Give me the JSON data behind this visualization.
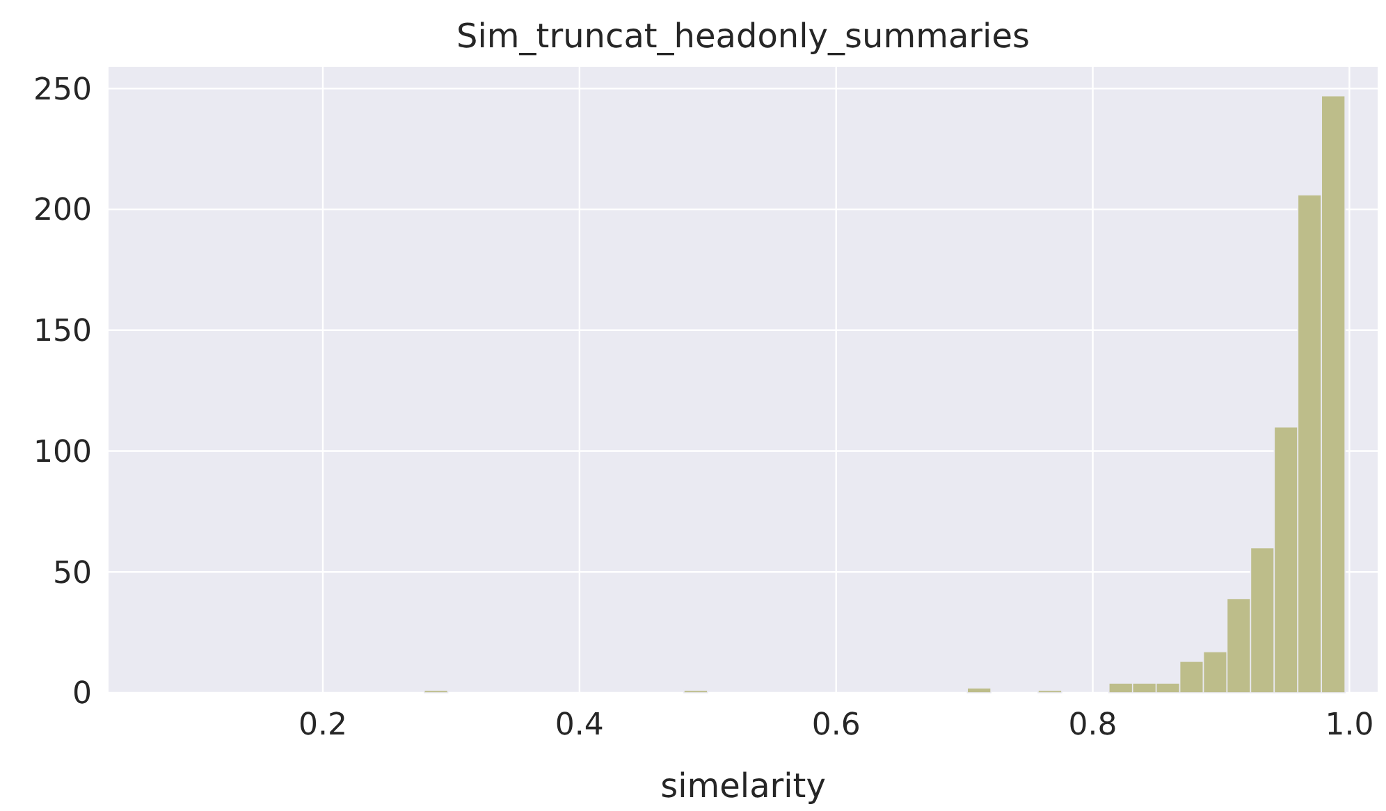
{
  "chart_data": {
    "type": "histogram",
    "title": "Sim_truncat_headonly_summaries",
    "xlabel": "simelarity",
    "bins": [
      0.0766,
      0.095,
      0.1134,
      0.1318,
      0.1502,
      0.1686,
      0.187,
      0.2054,
      0.2238,
      0.2422,
      0.2606,
      0.279,
      0.2974,
      0.3158,
      0.3342,
      0.3526,
      0.371,
      0.3894,
      0.4078,
      0.4262,
      0.4446,
      0.463,
      0.4814,
      0.4998,
      0.5182,
      0.5366,
      0.555,
      0.5734,
      0.5918,
      0.6102,
      0.6286,
      0.647,
      0.6654,
      0.6838,
      0.7022,
      0.7206,
      0.739,
      0.7574,
      0.7758,
      0.7942,
      0.8126,
      0.831,
      0.8494,
      0.8678,
      0.8862,
      0.9046,
      0.923,
      0.9414,
      0.9598,
      0.9782,
      0.9966
    ],
    "values": [
      0,
      0,
      0,
      0,
      0,
      0,
      0,
      0,
      0,
      0,
      0,
      1,
      0,
      0,
      0,
      0,
      0,
      0,
      0,
      0,
      0,
      0,
      1,
      0,
      0,
      0,
      0,
      0,
      0,
      0,
      0,
      0,
      0,
      0,
      2,
      0,
      0,
      1,
      0,
      0,
      4,
      4,
      4,
      13,
      17,
      39,
      60,
      110,
      206,
      247
    ],
    "color": "#bdbd8a",
    "xlim": [
      0.033,
      1.022
    ],
    "ylim": [
      0,
      259
    ],
    "xticks": [
      {
        "value": 0.2,
        "label": "0.2"
      },
      {
        "value": 0.4,
        "label": "0.4"
      },
      {
        "value": 0.6,
        "label": "0.6"
      },
      {
        "value": 0.8,
        "label": "0.8"
      },
      {
        "value": 1.0,
        "label": "1.0"
      }
    ],
    "yticks": [
      0,
      50,
      100,
      150,
      200,
      250
    ],
    "grid": true
  }
}
